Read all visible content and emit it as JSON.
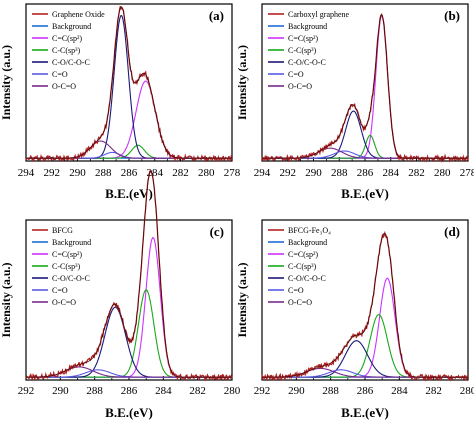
{
  "colors": {
    "raw": "#b22222",
    "background": "#1f6fd6",
    "sp2": "#cc33ff",
    "sp3": "#1aa81a",
    "coc": "#1a1a7a",
    "co": "#5a5ae6",
    "occo": "#7a2a8a"
  },
  "chart_data": [
    {
      "type": "line",
      "panel_label": "(a)",
      "xlabel": "B.E.(eV)",
      "ylabel": "Intensity (a.u.)",
      "xlim": [
        294,
        278
      ],
      "xticks": [
        "294",
        "292",
        "290",
        "288",
        "286",
        "284",
        "282",
        "280",
        "278"
      ],
      "ylim": [
        0,
        1.1
      ],
      "baseline": 0.02,
      "legend_position": "top-left",
      "legend": [
        {
          "name": "Graphene Oxide",
          "color": "#b22222"
        },
        {
          "name": "Background",
          "color": "#1f6fd6"
        },
        {
          "name": "C=C(sp²)",
          "color": "#cc33ff"
        },
        {
          "name": "C-C(sp³)",
          "color": "#1aa81a"
        },
        {
          "name": "C-O/C-O-C",
          "color": "#1a1a7a"
        },
        {
          "name": "C=O",
          "color": "#5a5ae6"
        },
        {
          "name": "O-C=O",
          "color": "#7a2a8a"
        }
      ],
      "components": [
        {
          "color": "#cc33ff",
          "center": 284.7,
          "height": 0.54,
          "width": 0.75
        },
        {
          "color": "#1aa81a",
          "center": 285.3,
          "height": 0.09,
          "width": 0.5
        },
        {
          "color": "#1a1a7a",
          "center": 286.6,
          "height": 1.0,
          "width": 0.55
        },
        {
          "color": "#5a5ae6",
          "center": 287.3,
          "height": 0.04,
          "width": 0.6
        },
        {
          "color": "#7a2a8a",
          "center": 288.2,
          "height": 0.12,
          "width": 0.8
        }
      ]
    },
    {
      "type": "line",
      "panel_label": "(b)",
      "xlabel": "B.E.(eV)",
      "ylabel": "Intensity (a.u.)",
      "xlim": [
        294,
        278
      ],
      "xticks": [
        "294",
        "292",
        "290",
        "288",
        "286",
        "284",
        "282",
        "280",
        "278"
      ],
      "ylim": [
        0,
        1.1
      ],
      "baseline": 0.02,
      "legend_position": "top-left",
      "legend": [
        {
          "name": "Carboxyl graphene",
          "color": "#b22222"
        },
        {
          "name": "Background",
          "color": "#1f6fd6"
        },
        {
          "name": "C=C(sp²)",
          "color": "#cc33ff"
        },
        {
          "name": "C-C(sp³)",
          "color": "#1aa81a"
        },
        {
          "name": "C-O/C-O-C",
          "color": "#1a1a7a"
        },
        {
          "name": "C=O",
          "color": "#5a5ae6"
        },
        {
          "name": "O-C=O",
          "color": "#7a2a8a"
        }
      ],
      "components": [
        {
          "color": "#cc33ff",
          "center": 284.7,
          "height": 1.0,
          "width": 0.45
        },
        {
          "color": "#1aa81a",
          "center": 285.6,
          "height": 0.16,
          "width": 0.35
        },
        {
          "color": "#1a1a7a",
          "center": 286.9,
          "height": 0.33,
          "width": 0.6
        },
        {
          "color": "#5a5ae6",
          "center": 287.6,
          "height": 0.05,
          "width": 0.8
        },
        {
          "color": "#7a2a8a",
          "center": 288.7,
          "height": 0.07,
          "width": 0.9
        }
      ]
    },
    {
      "type": "line",
      "panel_label": "(c)",
      "xlabel": "B.E.(eV)",
      "ylabel": "Intensity (a.u.)",
      "xlim": [
        292,
        280
      ],
      "xticks": [
        "292",
        "290",
        "288",
        "286",
        "284",
        "282",
        "280"
      ],
      "ylim": [
        0,
        1.1
      ],
      "baseline": 0.02,
      "legend_position": "top-left",
      "legend": [
        {
          "name": "BFCG",
          "color": "#b22222"
        },
        {
          "name": "Background",
          "color": "#1f6fd6"
        },
        {
          "name": "C=C(sp²)",
          "color": "#cc33ff"
        },
        {
          "name": "C-C(sp³)",
          "color": "#1aa81a"
        },
        {
          "name": "C-O/C-O-C",
          "color": "#1a1a7a"
        },
        {
          "name": "C=O",
          "color": "#5a5ae6"
        },
        {
          "name": "O-C=O",
          "color": "#7a2a8a"
        }
      ],
      "components": [
        {
          "color": "#cc33ff",
          "center": 284.6,
          "height": 0.96,
          "width": 0.42
        },
        {
          "color": "#1aa81a",
          "center": 285.0,
          "height": 0.6,
          "width": 0.45
        },
        {
          "color": "#1a1a7a",
          "center": 286.8,
          "height": 0.48,
          "width": 0.6
        },
        {
          "color": "#5a5ae6",
          "center": 287.8,
          "height": 0.05,
          "width": 0.7
        },
        {
          "color": "#7a2a8a",
          "center": 288.9,
          "height": 0.07,
          "width": 0.8
        }
      ]
    },
    {
      "type": "line",
      "panel_label": "(d)",
      "xlabel": "B.E.(eV)",
      "ylabel": "Intensity (a.u.)",
      "xlim": [
        292,
        280
      ],
      "xticks": [
        "292",
        "290",
        "288",
        "286",
        "284",
        "282",
        "280"
      ],
      "ylim": [
        0,
        1.1
      ],
      "baseline": 0.02,
      "legend_position": "top-left",
      "legend": [
        {
          "name": "BFCG-Fe₃O₄",
          "color": "#b22222"
        },
        {
          "name": "Background",
          "color": "#1f6fd6"
        },
        {
          "name": "C=C(sp²)",
          "color": "#cc33ff"
        },
        {
          "name": "C-C(sp³)",
          "color": "#1aa81a"
        },
        {
          "name": "C-O/C-O-C",
          "color": "#1a1a7a"
        },
        {
          "name": "C=O",
          "color": "#5a5ae6"
        },
        {
          "name": "O-C=O",
          "color": "#7a2a8a"
        }
      ],
      "components": [
        {
          "color": "#cc33ff",
          "center": 284.7,
          "height": 0.68,
          "width": 0.45
        },
        {
          "color": "#1aa81a",
          "center": 285.2,
          "height": 0.43,
          "width": 0.5
        },
        {
          "color": "#1a1a7a",
          "center": 286.5,
          "height": 0.25,
          "width": 0.65
        },
        {
          "color": "#5a5ae6",
          "center": 287.4,
          "height": 0.05,
          "width": 0.7
        },
        {
          "color": "#7a2a8a",
          "center": 288.6,
          "height": 0.06,
          "width": 0.8
        }
      ]
    }
  ]
}
